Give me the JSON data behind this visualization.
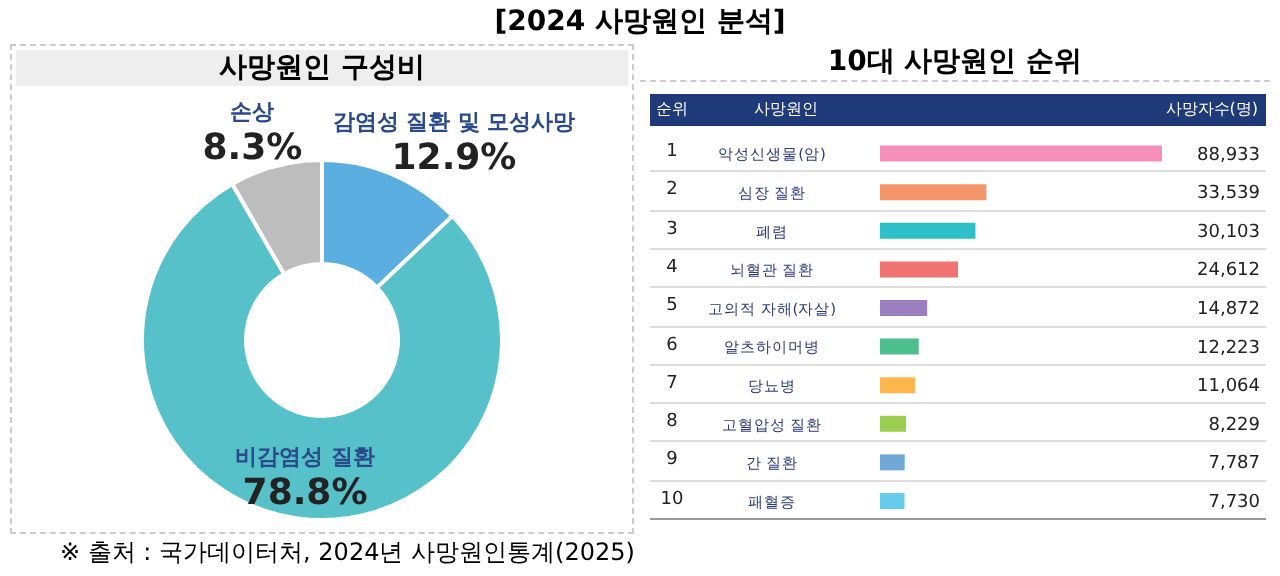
{
  "chart_data": [
    {
      "type": "donut",
      "title": "사망원인 구성비",
      "categories": [
        "감염성 질환 및 모성사망",
        "비감염성 질환",
        "손상"
      ],
      "values": [
        12.9,
        78.8,
        8.3
      ],
      "colors": [
        "#5aafe0",
        "#56c1c9",
        "#bdbdbd"
      ],
      "value_labels": [
        "12.9%",
        "78.8%",
        "8.3%"
      ],
      "annotations": [
        "[2024 사망원인 분석]",
        "※ 출처 : 국가데이터처, 2024년 사망원인통계(2025)"
      ]
    },
    {
      "type": "bar",
      "orientation": "horizontal",
      "title": "10대 사망원인 순위",
      "ylabel": "사망원인",
      "xlabel": "사망자수(명)",
      "categories": [
        "악성신생물(암)",
        "심장 질환",
        "폐렴",
        "뇌혈관 질환",
        "고의적 자해(자살)",
        "알츠하이머병",
        "당뇨병",
        "고혈압성 질환",
        "간 질환",
        "패혈증"
      ],
      "values": [
        88933,
        33539,
        30103,
        24612,
        14872,
        12223,
        11064,
        8229,
        7787,
        7730
      ],
      "colors": [
        "#f48fb9",
        "#f4956a",
        "#2ec0c9",
        "#f07470",
        "#9b7fc0",
        "#4dbf8e",
        "#ffb74d",
        "#9ccc50",
        "#6fa8d6",
        "#66ccee"
      ],
      "value_labels": [
        "88,933",
        "33,539",
        "30,103",
        "24,612",
        "14,872",
        "12,223",
        "11,064",
        "8,229",
        "7,787",
        "7,730"
      ],
      "tick_labels": "y",
      "annotations": [
        "순위",
        "1",
        "2",
        "3",
        "4",
        "5",
        "6",
        "7",
        "8",
        "9",
        "10"
      ]
    }
  ]
}
